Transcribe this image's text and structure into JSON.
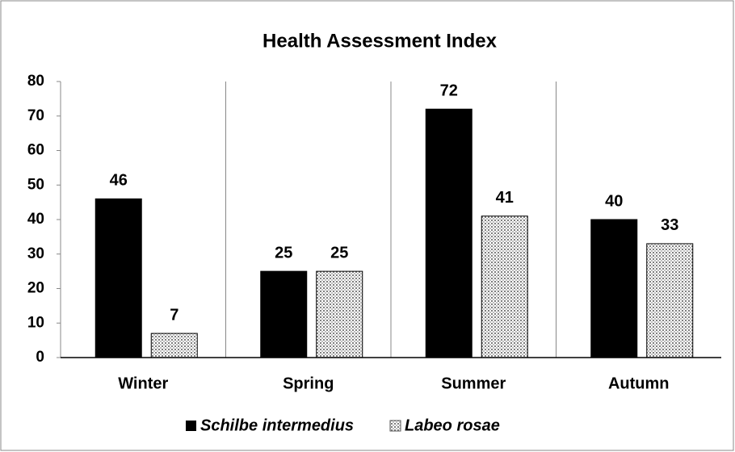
{
  "chart_data": {
    "type": "bar",
    "title": "Health Assessment Index",
    "categories": [
      "Winter",
      "Spring",
      "Summer",
      "Autumn"
    ],
    "series": [
      {
        "name": "Schilbe intermedius",
        "color": "#000000",
        "values": [
          46,
          25,
          72,
          40
        ]
      },
      {
        "name": "Labeo rosae",
        "color": "#000000",
        "pattern": "dots",
        "values": [
          7,
          25,
          41,
          33
        ]
      }
    ],
    "ylim": [
      0,
      80
    ],
    "yticks": [
      0,
      10,
      20,
      30,
      40,
      50,
      60,
      70,
      80
    ],
    "category_separators": true,
    "legend": "bottom"
  }
}
